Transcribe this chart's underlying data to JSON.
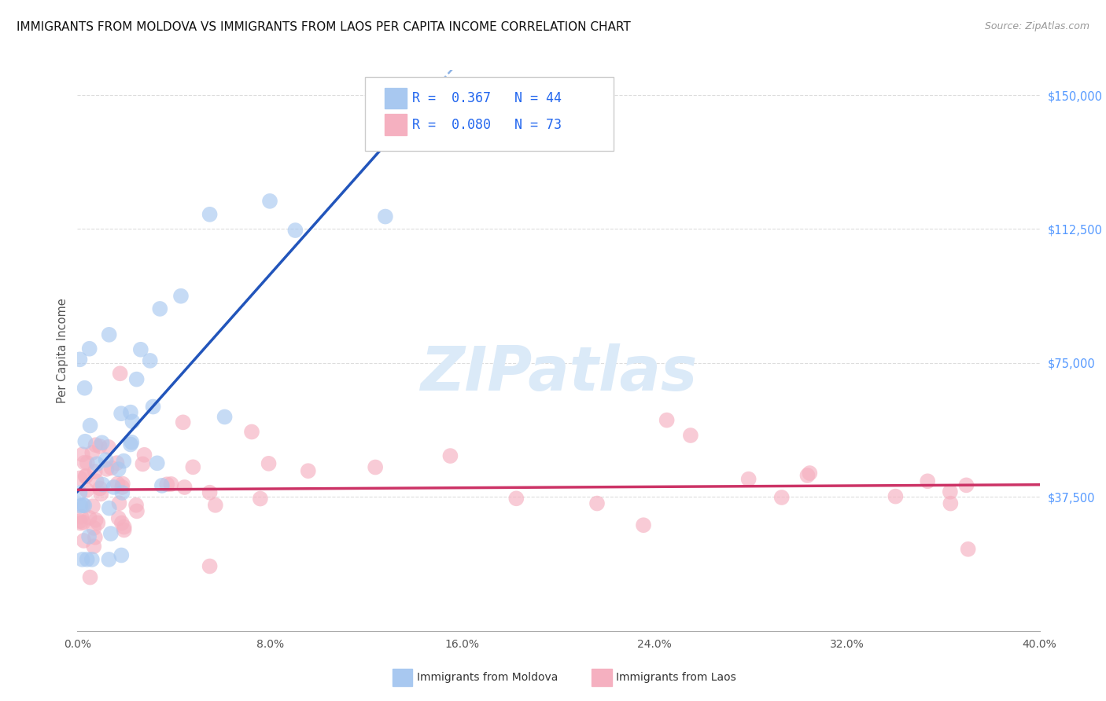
{
  "title": "IMMIGRANTS FROM MOLDOVA VS IMMIGRANTS FROM LAOS PER CAPITA INCOME CORRELATION CHART",
  "source": "Source: ZipAtlas.com",
  "ylabel": "Per Capita Income",
  "xlim": [
    0.0,
    0.4
  ],
  "ylim": [
    0,
    157000
  ],
  "yticks": [
    37500,
    75000,
    112500,
    150000
  ],
  "xticks": [
    0.0,
    0.08,
    0.16,
    0.24,
    0.32,
    0.4
  ],
  "legend_r1_text": "R =  0.367   N = 44",
  "legend_r2_text": "R =  0.080   N = 73",
  "legend_label1": "Immigrants from Moldova",
  "legend_label2": "Immigrants from Laos",
  "moldova_color": "#a8c8f0",
  "laos_color": "#f5b0c0",
  "moldova_trend_solid": "#2255bb",
  "moldova_trend_dash": "#6699dd",
  "laos_trend_color": "#cc3366",
  "background_color": "#ffffff",
  "grid_color": "#dddddd",
  "yaxis_color": "#5599ff",
  "watermark_color": "#dbeaf8",
  "title_fontsize": 11,
  "scatter_size": 200,
  "scatter_alpha": 0.65
}
